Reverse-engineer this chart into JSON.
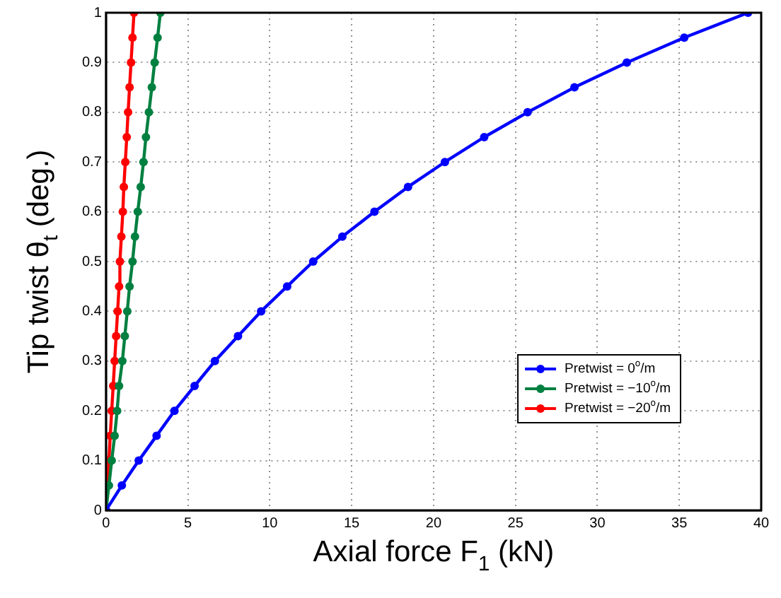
{
  "chart_data": {
    "type": "line",
    "xlabel": "Axial force F$_{1}$ (kN)",
    "ylabel": "Tip twist θ$_{t}$ (deg.)",
    "xlim": [
      0,
      40
    ],
    "xticks": [
      0,
      5,
      10,
      15,
      20,
      25,
      30,
      35,
      40
    ],
    "ylim": [
      0,
      1
    ],
    "yticks": [
      0,
      0.1,
      0.2,
      0.3,
      0.4,
      0.5,
      0.6,
      0.7,
      0.8,
      0.9,
      1
    ],
    "grid": true,
    "legend": "bottom right",
    "marker": "circle",
    "line_style": "solid",
    "series": [
      {
        "name": "Pretwist = 0$^{o}$/m",
        "color": "#0000ff",
        "x": [
          0,
          0.97,
          2.0,
          3.09,
          4.18,
          5.41,
          6.65,
          8.06,
          9.47,
          11.06,
          12.65,
          14.43,
          16.39,
          18.44,
          20.69,
          23.09,
          25.74,
          28.6,
          31.8,
          35.3,
          39.2
        ],
        "values": [
          0,
          0.05,
          0.1,
          0.15,
          0.2,
          0.25,
          0.3,
          0.35,
          0.4,
          0.45,
          0.5,
          0.55,
          0.6,
          0.65,
          0.7,
          0.75,
          0.8,
          0.85,
          0.9,
          0.95,
          1
        ]
      },
      {
        "name": "Pretwist = −10$^{o}$/m",
        "color": "#008040",
        "x": [
          0,
          0.18,
          0.35,
          0.53,
          0.68,
          0.8,
          1.0,
          1.15,
          1.3,
          1.44,
          1.62,
          1.77,
          1.94,
          2.12,
          2.29,
          2.44,
          2.62,
          2.8,
          2.97,
          3.15,
          3.32
        ],
        "values": [
          0,
          0.05,
          0.1,
          0.15,
          0.2,
          0.25,
          0.3,
          0.35,
          0.4,
          0.45,
          0.5,
          0.55,
          0.6,
          0.65,
          0.7,
          0.75,
          0.8,
          0.85,
          0.9,
          0.95,
          1
        ]
      },
      {
        "name": "Pretwist = −20$^{o}$/m",
        "color": "#ff0000",
        "x": [
          0,
          0.09,
          0.18,
          0.26,
          0.35,
          0.44,
          0.53,
          0.62,
          0.71,
          0.8,
          0.85,
          0.94,
          1.03,
          1.09,
          1.18,
          1.27,
          1.35,
          1.44,
          1.53,
          1.62,
          1.71
        ],
        "values": [
          0,
          0.05,
          0.1,
          0.15,
          0.2,
          0.25,
          0.3,
          0.35,
          0.4,
          0.45,
          0.5,
          0.55,
          0.6,
          0.65,
          0.7,
          0.75,
          0.8,
          0.85,
          0.9,
          0.95,
          1
        ]
      }
    ]
  }
}
